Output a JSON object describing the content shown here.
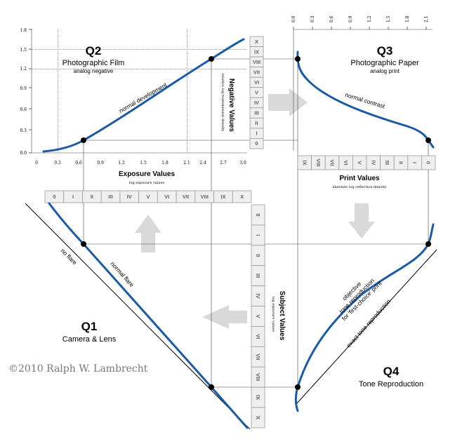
{
  "q2": {
    "title": "Q2",
    "subtitle": "Photographic Film",
    "note": "analog negative",
    "curve_label": "normal development"
  },
  "q3": {
    "title": "Q3",
    "subtitle": "Photographic Paper",
    "note": "analog print",
    "curve_label": "normal contrast"
  },
  "q1": {
    "title": "Q1",
    "subtitle": "Camera & Lens",
    "line1": "no flare",
    "line2": "normal flare"
  },
  "q4": {
    "title": "Q4",
    "subtitle": "Tone Reproduction",
    "line1": "objective",
    "line2": "tone reproduction",
    "line3": "for 'first-choice' print",
    "exact": "exact tone reproduction"
  },
  "axes": {
    "exposure": {
      "label": "Exposure Values",
      "sub": "log exposure values",
      "ticks": [
        "0",
        "0.3",
        "0.6",
        "0.9",
        "1.2",
        "1.5",
        "1.8",
        "2.1",
        "2.4",
        "2.7",
        "3.0"
      ]
    },
    "density": {
      "ticks": [
        "0.0",
        "0.3",
        "0.6",
        "0.9",
        "1.2",
        "1.5",
        "1.8"
      ]
    },
    "negative": {
      "label": "Negative Values",
      "sub": "relative log transmission density"
    },
    "print": {
      "label": "Print Values",
      "sub": "absolute log reflection density"
    },
    "paper": {
      "ticks": [
        "0.0",
        "0.3",
        "0.6",
        "0.9",
        "1.2",
        "1.5",
        "1.8",
        "2.1"
      ]
    },
    "subject": {
      "label": "Subject Values",
      "sub": "log exposure values"
    }
  },
  "zones": {
    "top": [
      "0",
      "I",
      "II",
      "III",
      "IV",
      "V",
      "VI",
      "VII",
      "VIII",
      "IX",
      "X"
    ],
    "right": [
      "0",
      "I",
      "II",
      "III",
      "IV",
      "V",
      "VI",
      "VII",
      "VIII",
      "IX",
      "X"
    ],
    "negative": [
      "X",
      "IX",
      "VIII",
      "VII",
      "VI",
      "V",
      "IV",
      "III",
      "II",
      "I",
      "0"
    ],
    "print": [
      "IX",
      "VIII",
      "VII",
      "VI",
      "V",
      "IV",
      "III",
      "II",
      "I",
      "0"
    ]
  },
  "copyright": "©2010   Ralph W. Lambrecht",
  "colors": {
    "curve": "#1a5aa6",
    "zone_fill": "#efefef",
    "arrow": "#d9d9d9"
  }
}
